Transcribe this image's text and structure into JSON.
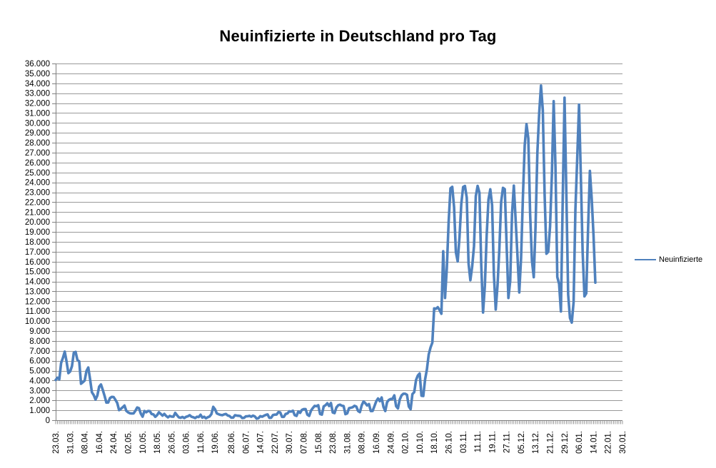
{
  "title": "Neuinfizierte in Deutschland pro Tag",
  "legend": {
    "label": "Neuinfizierte",
    "position": "right"
  },
  "chart_data": {
    "type": "line",
    "title": "Neuinfizierte in Deutschland pro Tag",
    "xlabel": "",
    "ylabel": "",
    "grid": "horizontal",
    "legend_position": "right",
    "y_axis": {
      "min": 0,
      "max": 36000,
      "step": 1000,
      "tick_format": "german-thousands-dot"
    },
    "x_total_slots": 313,
    "x_labels": [
      {
        "label": "23.03.",
        "slot": 0
      },
      {
        "label": "31.03.",
        "slot": 8
      },
      {
        "label": "08.04.",
        "slot": 16
      },
      {
        "label": "16.04.",
        "slot": 24
      },
      {
        "label": "24.04.",
        "slot": 32
      },
      {
        "label": "02.05.",
        "slot": 40
      },
      {
        "label": "10.05.",
        "slot": 48
      },
      {
        "label": "18.05.",
        "slot": 56
      },
      {
        "label": "26.05.",
        "slot": 64
      },
      {
        "label": "03.06.",
        "slot": 72
      },
      {
        "label": "11.06.",
        "slot": 80
      },
      {
        "label": "19.06.",
        "slot": 88
      },
      {
        "label": "28.06.",
        "slot": 97
      },
      {
        "label": "06.07.",
        "slot": 105
      },
      {
        "label": "14.07.",
        "slot": 113
      },
      {
        "label": "22.07.",
        "slot": 121
      },
      {
        "label": "30.07.",
        "slot": 129
      },
      {
        "label": "07.08.",
        "slot": 137
      },
      {
        "label": "15.08.",
        "slot": 145
      },
      {
        "label": "23.08.",
        "slot": 153
      },
      {
        "label": "31.08.",
        "slot": 161
      },
      {
        "label": "08.09.",
        "slot": 169
      },
      {
        "label": "16.09.",
        "slot": 177
      },
      {
        "label": "24.09.",
        "slot": 185
      },
      {
        "label": "02.10.",
        "slot": 193
      },
      {
        "label": "10.10.",
        "slot": 201
      },
      {
        "label": "18.10.",
        "slot": 209
      },
      {
        "label": "26.10.",
        "slot": 217
      },
      {
        "label": "03.11.",
        "slot": 225
      },
      {
        "label": "11.11.",
        "slot": 233
      },
      {
        "label": "19.11.",
        "slot": 241
      },
      {
        "label": "27.11.",
        "slot": 249
      },
      {
        "label": "05.12.",
        "slot": 257
      },
      {
        "label": "13.12.",
        "slot": 265
      },
      {
        "label": "21.12.",
        "slot": 273
      },
      {
        "label": "29.12.",
        "slot": 281
      },
      {
        "label": "06.01.",
        "slot": 289
      },
      {
        "label": "14.01.",
        "slot": 297
      },
      {
        "label": "22.01.",
        "slot": 305
      },
      {
        "label": "30.01.",
        "slot": 313
      }
    ],
    "colors": {
      "line": "#4F81BD",
      "gridline": "#999999",
      "axis": "#7F7F7F",
      "text": "#000000",
      "background": "#FFFFFF"
    },
    "series": [
      {
        "name": "Neuinfizierte",
        "color": "#4F81BD",
        "values": [
          4062,
          4289,
          4118,
          5780,
          6294,
          6922,
          5936,
          4751,
          4923,
          5453,
          6813,
          6892,
          6082,
          5936,
          3677,
          3834,
          4003,
          4974,
          5323,
          4133,
          2821,
          2537,
          2082,
          2486,
          3380,
          3609,
          3060,
          2458,
          1775,
          1785,
          2237,
          2352,
          2337,
          2055,
          1737,
          1018,
          1144,
          1304,
          1478,
          945,
          793,
          697,
          679,
          685,
          947,
          1284,
          1209,
          667,
          357,
          933,
          798,
          933,
          913,
          620,
          583,
          342,
          513,
          797,
          639,
          460,
          638,
          431,
          289,
          432,
          362,
          353,
          741,
          507,
          286,
          247,
          333,
          213,
          342,
          394,
          507,
          348,
          301,
          214,
          350,
          318,
          555,
          258,
          348,
          192,
          300,
          378,
          620,
          1350,
          1100,
          687,
          601,
          537,
          503,
          587,
          630,
          477,
          421,
          256,
          262,
          498,
          466,
          446,
          422,
          219,
          239,
          390,
          397,
          442,
          356,
          462,
          378,
          159,
          210,
          412,
          351,
          447,
          529,
          583,
          239,
          249,
          522,
          562,
          569,
          815,
          781,
          340,
          340,
          633,
          684,
          902,
          870,
          955,
          509,
          432,
          879,
          741,
          1045,
          1122,
          1122,
          555,
          436,
          966,
          1226,
          1445,
          1415,
          1510,
          625,
          561,
          1390,
          1510,
          1707,
          1427,
          1734,
          782,
          711,
          1278,
          1507,
          1571,
          1466,
          1432,
          610,
          690,
          1218,
          1256,
          1311,
          1453,
          1378,
          930,
          814,
          1499,
          1892,
          1716,
          1484,
          1630,
          920,
          927,
          1407,
          1901,
          2194,
          1916,
          2297,
          1345,
          922,
          1821,
          2049,
          2143,
          2153,
          2507,
          1411,
          1192,
          2089,
          2503,
          2673,
          2673,
          2563,
          1382,
          1108,
          2639,
          2828,
          4058,
          4516,
          4721,
          2467,
          2437,
          4122,
          5132,
          6638,
          7334,
          7830,
          11287,
          11242,
          11409,
          11120,
          10742,
          17051,
          12331,
          15352,
          19990,
          23399,
          23553,
          21506,
          16947,
          16017,
          18487,
          21866,
          23542,
          23642,
          22461,
          15820,
          14122,
          15513,
          17561,
          22609,
          23648,
          22964,
          15741,
          10864,
          13554,
          18633,
          22268,
          23306,
          21695,
          14611,
          11169,
          13604,
          17270,
          22046,
          23449,
          23318,
          17767,
          12332,
          14054,
          20815,
          23679,
          20200,
          16643,
          12892,
          16362,
          22459,
          27728,
          29875,
          28438,
          20815,
          16100,
          14432,
          19600,
          27000,
          31000,
          33777,
          31300,
          22771,
          16800,
          17000,
          19528,
          24740,
          32195,
          25533,
          14455,
          13755,
          10976,
          22340,
          32552,
          22924,
          12690,
          10315,
          9847,
          11897,
          21237,
          26391,
          31849,
          24694,
          16946,
          12497,
          12802,
          19360,
          25164,
          22368,
          18678,
          13882
        ]
      }
    ]
  }
}
